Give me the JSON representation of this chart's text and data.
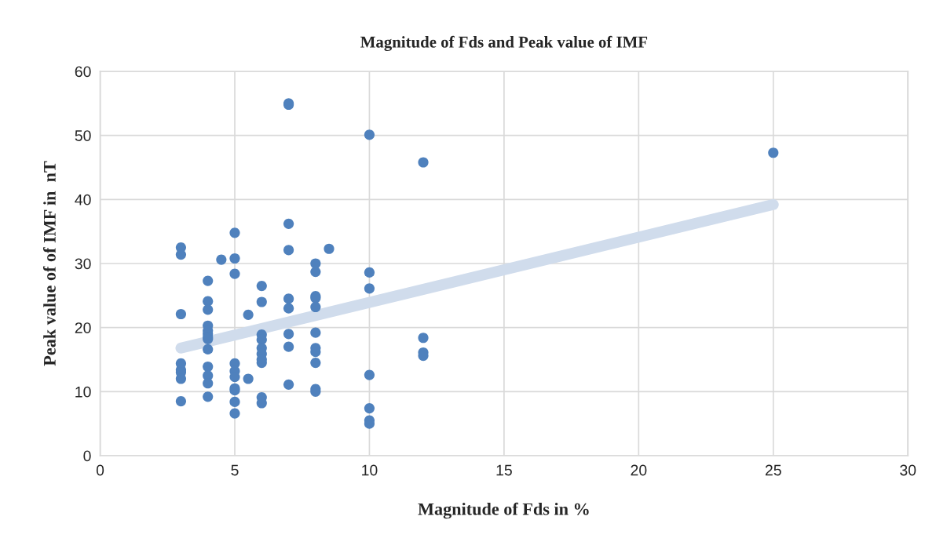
{
  "chart_data": {
    "type": "scatter",
    "title": "Magnitude of Fds and Peak value of IMF",
    "xlabel": "Magnitude of Fds in %",
    "ylabel": "Peak value of of IMF in  nT",
    "xlim": [
      0,
      30
    ],
    "xticks": [
      0,
      5,
      10,
      15,
      20,
      25,
      30
    ],
    "ylim": [
      0,
      60
    ],
    "yticks": [
      0,
      10,
      20,
      30,
      40,
      50,
      60
    ],
    "grid": true,
    "marker": "circle",
    "legend": false,
    "series": [
      {
        "color": "#4f81bd",
        "x": [
          3,
          3,
          3,
          3,
          3,
          3,
          3,
          3,
          4,
          4,
          4,
          4,
          4,
          4,
          4,
          4,
          4,
          4,
          4,
          4,
          4,
          4.5,
          5,
          5,
          5,
          5,
          5,
          5,
          5,
          5,
          5,
          5,
          5.5,
          5.5,
          6,
          6,
          6,
          6,
          6,
          6,
          6,
          6,
          6,
          6,
          7,
          7,
          7,
          7,
          7,
          7,
          7,
          7,
          7,
          8,
          8,
          8,
          8,
          8,
          8,
          8,
          8,
          8,
          8,
          8,
          8.5,
          10,
          10,
          10,
          10,
          10,
          10,
          10,
          12,
          12,
          12,
          12,
          25
        ],
        "values": [
          32.5,
          31.4,
          22.1,
          14.4,
          13.4,
          13.0,
          12.0,
          8.5,
          27.3,
          24.1,
          22.8,
          20.3,
          19.5,
          19.0,
          18.5,
          18.2,
          16.6,
          13.9,
          12.5,
          11.3,
          9.2,
          30.6,
          34.8,
          30.8,
          28.4,
          14.4,
          13.2,
          12.3,
          10.5,
          10.2,
          8.4,
          6.6,
          22.0,
          12.0,
          26.5,
          24.0,
          18.9,
          18.1,
          16.8,
          15.9,
          15.0,
          14.5,
          9.1,
          8.2,
          55.0,
          54.8,
          36.2,
          32.1,
          24.5,
          23.0,
          19.0,
          17.0,
          11.1,
          30.0,
          28.7,
          24.9,
          24.6,
          23.2,
          19.2,
          16.8,
          16.2,
          14.5,
          10.4,
          10.0,
          32.3,
          50.1,
          28.6,
          26.1,
          12.6,
          7.4,
          5.5,
          5.0,
          45.8,
          18.4,
          16.1,
          15.6,
          47.3
        ]
      },
      {
        "type": "line",
        "marker": "none",
        "color": "#d0dcec",
        "x": [
          3,
          25
        ],
        "values": [
          16.8,
          39.2
        ]
      }
    ]
  }
}
